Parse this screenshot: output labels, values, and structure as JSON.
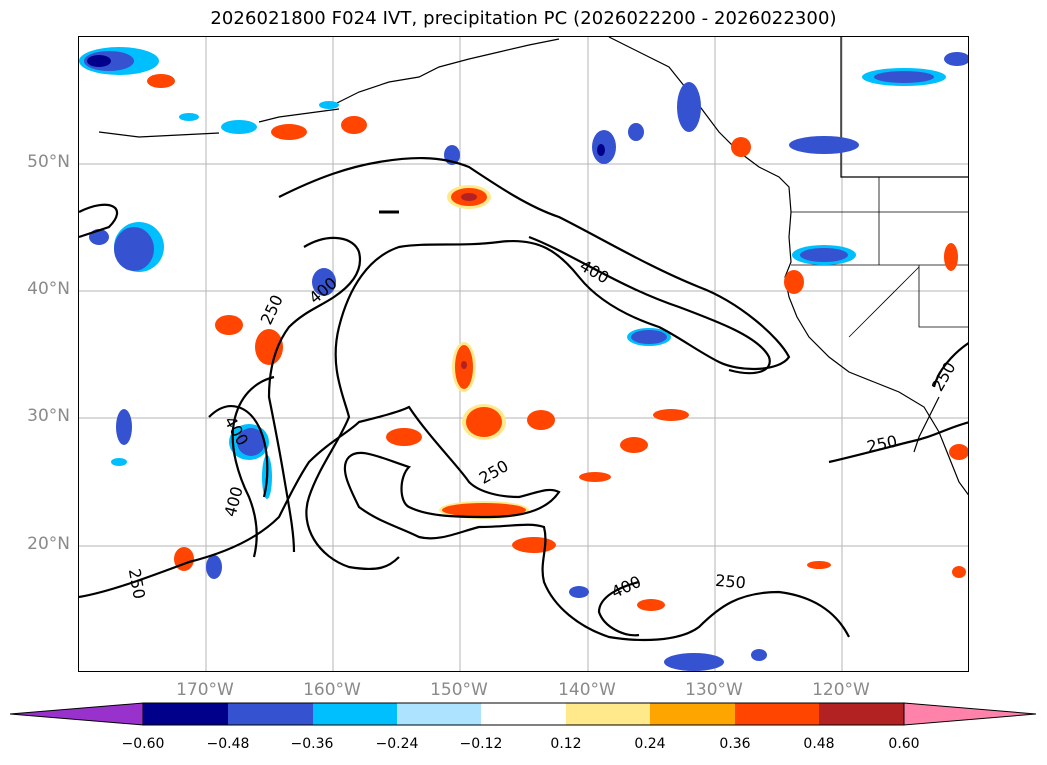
{
  "title": "2026021800 F024 IVT, precipitation PC (2026022200 - 2026022300)",
  "lat_labels": [
    "50°N",
    "40°N",
    "30°N",
    "20°N"
  ],
  "lon_labels": [
    "170°W",
    "160°W",
    "150°W",
    "140°W",
    "130°W",
    "120°W"
  ],
  "contour_labels": {
    "c250_a": "250",
    "c400_a": "400",
    "c400_b": "400",
    "c400_c": "400",
    "c400_d": "400",
    "c250_b": "250",
    "c250_c": "250",
    "c250_d": "250",
    "c250_e": "250",
    "c250_f": "250"
  },
  "colorbar": {
    "ticks": [
      "−0.60",
      "−0.48",
      "−0.36",
      "−0.24",
      "−0.12",
      "0.12",
      "0.24",
      "0.36",
      "0.48",
      "0.60"
    ],
    "colors": {
      "under": "#9932cc",
      "b1": "#00008b",
      "b2": "#3553d0",
      "b3": "#00bfff",
      "b4": "#aee3ff",
      "mid": "#ffffff",
      "r1": "#ffe98a",
      "r2": "#ffa500",
      "r3": "#ff4500",
      "r4": "#b22222",
      "over": "#ff82ab"
    }
  }
}
